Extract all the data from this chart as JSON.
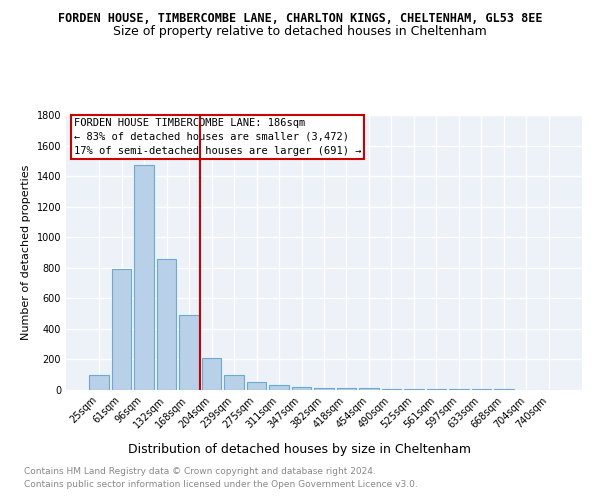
{
  "title": "FORDEN HOUSE, TIMBERCOMBE LANE, CHARLTON KINGS, CHELTENHAM, GL53 8EE",
  "subtitle": "Size of property relative to detached houses in Cheltenham",
  "xlabel": "Distribution of detached houses by size in Cheltenham",
  "ylabel": "Number of detached properties",
  "categories": [
    "25sqm",
    "61sqm",
    "96sqm",
    "132sqm",
    "168sqm",
    "204sqm",
    "239sqm",
    "275sqm",
    "311sqm",
    "347sqm",
    "382sqm",
    "418sqm",
    "454sqm",
    "490sqm",
    "525sqm",
    "561sqm",
    "597sqm",
    "633sqm",
    "668sqm",
    "704sqm",
    "740sqm"
  ],
  "values": [
    100,
    790,
    1470,
    860,
    490,
    210,
    100,
    50,
    30,
    20,
    15,
    12,
    10,
    8,
    7,
    6,
    5,
    4,
    4,
    3,
    3
  ],
  "bar_color": "#b8d0e8",
  "bar_edge_color": "#6aaad4",
  "annotation_title": "FORDEN HOUSE TIMBERCOMBE LANE: 186sqm",
  "annotation_line1": "← 83% of detached houses are smaller (3,472)",
  "annotation_line2": "17% of semi-detached houses are larger (691) →",
  "annotation_box_color": "#ffffff",
  "annotation_box_edge": "#cc0000",
  "vline_color": "#cc0000",
  "ylim": [
    0,
    1800
  ],
  "yticks": [
    0,
    200,
    400,
    600,
    800,
    1000,
    1200,
    1400,
    1600,
    1800
  ],
  "footer1": "Contains HM Land Registry data © Crown copyright and database right 2024.",
  "footer2": "Contains public sector information licensed under the Open Government Licence v3.0.",
  "bg_color": "#ffffff",
  "plot_bg_color": "#edf2f9",
  "grid_color": "#ffffff",
  "title_fontsize": 8.5,
  "subtitle_fontsize": 9,
  "xlabel_fontsize": 9,
  "ylabel_fontsize": 8,
  "tick_fontsize": 7,
  "footer_fontsize": 6.5,
  "annotation_fontsize": 7.5
}
